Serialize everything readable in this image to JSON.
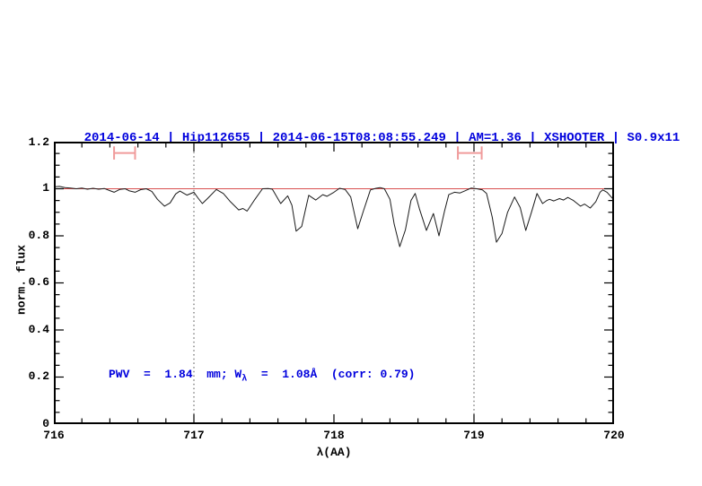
{
  "title": {
    "text": "2014-06-14 | Hip112655 | 2014-06-15T08:08:55.249 | AM=1.36 | XSHOOTER | S0.9x11",
    "color": "#0000dd"
  },
  "annotation": {
    "prefix": "PWV  =  1.84  mm; W",
    "sub": "λ",
    "suffix": "  =  1.08Å  (corr: 0.79)",
    "color": "#0000dd"
  },
  "chart_data": {
    "type": "line",
    "title": "2014-06-14 | Hip112655 | 2014-06-15T08:08:55.249 | AM=1.36 | XSHOOTER | S0.9x11",
    "xlabel": "λ(AA)",
    "ylabel": "norm. flux",
    "xlim": [
      716,
      720
    ],
    "ylim": [
      0,
      1.2
    ],
    "xticks": [
      716,
      717,
      718,
      719,
      720
    ],
    "yticks": [
      0,
      0.2,
      0.4,
      0.6,
      0.8,
      1,
      1.2
    ],
    "xtick_labels": [
      "716",
      "717",
      "718",
      "719",
      "720"
    ],
    "ytick_labels": [
      "0",
      "0.2",
      "0.4",
      "0.6",
      "0.8",
      "1",
      "1.2"
    ],
    "minor_x_step": 0.2,
    "minor_y_step": 0.05,
    "grid": "off",
    "frame_color": "#000000",
    "reference_line": {
      "y": 1.0,
      "color": "#d94f4f"
    },
    "dotted_vlines": {
      "x": [
        717,
        719
      ],
      "color": "#4a4a4a"
    },
    "band_markers": {
      "color": "#f09b9b",
      "y": 1.152,
      "cap_half_height": 0.028,
      "items": [
        {
          "x_center": 716.505,
          "half_width": 0.075
        },
        {
          "x_center": 718.97,
          "half_width": 0.085
        }
      ]
    },
    "series": [
      {
        "name": "normalized-spectrum",
        "color": "#1a1a1a",
        "points": [
          [
            716.0,
            1.008
          ],
          [
            716.04,
            1.01
          ],
          [
            716.08,
            1.005
          ],
          [
            716.12,
            1.003
          ],
          [
            716.16,
            1.0
          ],
          [
            716.2,
            1.003
          ],
          [
            716.24,
            0.998
          ],
          [
            716.28,
            1.002
          ],
          [
            716.32,
            0.998
          ],
          [
            716.36,
            1.001
          ],
          [
            716.4,
            0.992
          ],
          [
            716.43,
            0.985
          ],
          [
            716.47,
            0.997
          ],
          [
            716.51,
            1.0
          ],
          [
            716.54,
            0.991
          ],
          [
            716.58,
            0.985
          ],
          [
            716.62,
            0.996
          ],
          [
            716.66,
            1.0
          ],
          [
            716.7,
            0.988
          ],
          [
            716.74,
            0.955
          ],
          [
            716.79,
            0.926
          ],
          [
            716.83,
            0.94
          ],
          [
            716.87,
            0.978
          ],
          [
            716.9,
            0.99
          ],
          [
            716.95,
            0.973
          ],
          [
            717.0,
            0.985
          ],
          [
            717.03,
            0.96
          ],
          [
            717.06,
            0.937
          ],
          [
            717.1,
            0.96
          ],
          [
            717.16,
            0.997
          ],
          [
            717.21,
            0.98
          ],
          [
            717.26,
            0.945
          ],
          [
            717.32,
            0.91
          ],
          [
            717.35,
            0.916
          ],
          [
            717.38,
            0.905
          ],
          [
            717.43,
            0.95
          ],
          [
            717.49,
            1.0
          ],
          [
            717.53,
            1.001
          ],
          [
            717.56,
            0.998
          ],
          [
            717.62,
            0.937
          ],
          [
            717.67,
            0.97
          ],
          [
            717.7,
            0.93
          ],
          [
            717.73,
            0.82
          ],
          [
            717.77,
            0.84
          ],
          [
            717.8,
            0.92
          ],
          [
            717.82,
            0.972
          ],
          [
            717.87,
            0.952
          ],
          [
            717.92,
            0.975
          ],
          [
            717.95,
            0.968
          ],
          [
            718.0,
            0.985
          ],
          [
            718.04,
            1.002
          ],
          [
            718.08,
            0.997
          ],
          [
            718.12,
            0.965
          ],
          [
            718.17,
            0.83
          ],
          [
            718.21,
            0.905
          ],
          [
            718.26,
            0.995
          ],
          [
            718.3,
            1.002
          ],
          [
            718.33,
            1.005
          ],
          [
            718.36,
            1.0
          ],
          [
            718.4,
            0.955
          ],
          [
            718.43,
            0.85
          ],
          [
            718.47,
            0.754
          ],
          [
            718.51,
            0.825
          ],
          [
            718.55,
            0.95
          ],
          [
            718.58,
            0.98
          ],
          [
            718.61,
            0.915
          ],
          [
            718.66,
            0.823
          ],
          [
            718.71,
            0.895
          ],
          [
            718.75,
            0.8
          ],
          [
            718.79,
            0.905
          ],
          [
            718.82,
            0.975
          ],
          [
            718.86,
            0.985
          ],
          [
            718.9,
            0.982
          ],
          [
            718.94,
            0.992
          ],
          [
            718.98,
            1.003
          ],
          [
            719.02,
            1.0
          ],
          [
            719.06,
            0.995
          ],
          [
            719.09,
            0.98
          ],
          [
            719.13,
            0.88
          ],
          [
            719.16,
            0.773
          ],
          [
            719.2,
            0.81
          ],
          [
            719.24,
            0.9
          ],
          [
            719.29,
            0.965
          ],
          [
            719.33,
            0.92
          ],
          [
            719.37,
            0.823
          ],
          [
            719.41,
            0.9
          ],
          [
            719.45,
            0.98
          ],
          [
            719.49,
            0.937
          ],
          [
            719.52,
            0.95
          ],
          [
            719.54,
            0.955
          ],
          [
            719.57,
            0.948
          ],
          [
            719.61,
            0.958
          ],
          [
            719.64,
            0.952
          ],
          [
            719.67,
            0.963
          ],
          [
            719.71,
            0.95
          ],
          [
            719.76,
            0.926
          ],
          [
            719.79,
            0.935
          ],
          [
            719.83,
            0.918
          ],
          [
            719.87,
            0.945
          ],
          [
            719.9,
            0.985
          ],
          [
            719.92,
            0.995
          ],
          [
            719.95,
            0.985
          ],
          [
            719.98,
            0.965
          ],
          [
            720.0,
            0.952
          ]
        ]
      }
    ]
  }
}
